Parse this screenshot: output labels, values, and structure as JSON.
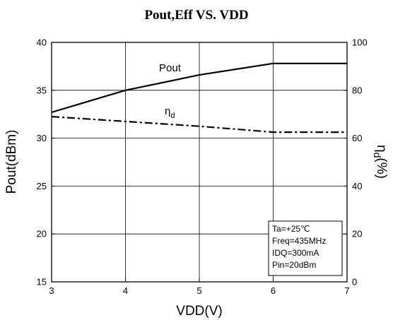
{
  "chart_data": {
    "type": "line",
    "title": "Pout,Eff  VS. VDD",
    "xlabel": "VDD(V)",
    "ylabel_left": "Pout(dBm)",
    "ylabel_right_symbol": "η",
    "ylabel_right_sub": "d",
    "ylabel_right_suffix": "(%)",
    "xlim": [
      3,
      7
    ],
    "ylim_left": [
      15,
      40
    ],
    "ylim_right": [
      0,
      100
    ],
    "x_ticks": [
      "3",
      "4",
      "5",
      "6",
      "7"
    ],
    "y_left_ticks": [
      "15",
      "20",
      "25",
      "30",
      "35",
      "40"
    ],
    "y_right_ticks": [
      "0",
      "20",
      "40",
      "60",
      "80",
      "100"
    ],
    "grid": true,
    "series": [
      {
        "name": "Pout",
        "axis": "left",
        "style": "solid",
        "color": "#000000",
        "x": [
          3,
          4,
          5,
          6,
          7
        ],
        "y": [
          32.7,
          35.0,
          36.6,
          37.8,
          37.8
        ]
      },
      {
        "name_symbol": "η",
        "name_sub": "d",
        "axis": "right",
        "style": "dash-dot",
        "color": "#000000",
        "x": [
          3,
          4,
          5,
          6,
          7
        ],
        "y": [
          69,
          67,
          65,
          62.5,
          62.5
        ]
      }
    ],
    "annotation": [
      "Ta=+25℃",
      "Freq=435MHz",
      "IDQ=300mA",
      "Pin=20dBm"
    ]
  }
}
